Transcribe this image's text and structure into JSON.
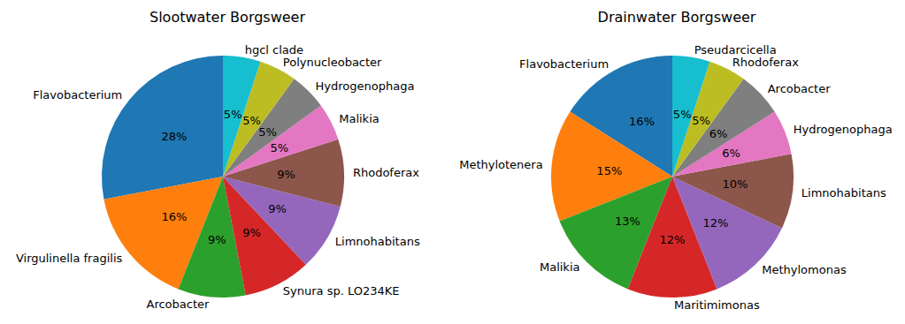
{
  "chart_data": [
    {
      "type": "pie",
      "title": "Slootwater Borgsweer",
      "categories": [
        "Flavobacterium",
        "Virgulinella fragilis",
        "Arcobacter",
        "Synura sp. LO234KE",
        "Limnohabitans",
        "Rhodoferax",
        "Malikia",
        "Hydrogenophaga",
        "Polynucleobacter",
        "hgcl clade"
      ],
      "values": [
        28,
        16,
        9,
        9,
        9,
        9,
        5,
        5,
        5,
        5
      ],
      "value_labels": [
        "28%",
        "16%",
        "9%",
        "9%",
        "9%",
        "9%",
        "5%",
        "5%",
        "5%",
        "5%"
      ],
      "colors": [
        "#1f77b4",
        "#ff7f0e",
        "#2ca02c",
        "#d62728",
        "#9467bd",
        "#8c564b",
        "#e377c2",
        "#7f7f7f",
        "#bcbd22",
        "#17becf"
      ],
      "data_labels": true
    },
    {
      "type": "pie",
      "title": "Drainwater Borgsweer",
      "categories": [
        "Flavobacterium",
        "Methylotenera",
        "Malikia",
        "Maritimimonas",
        "Methylomonas",
        "Limnohabitans",
        "Hydrogenophaga",
        "Arcobacter",
        "Rhodoferax",
        "Pseudarcicella"
      ],
      "values": [
        16,
        15,
        13,
        12,
        12,
        10,
        6,
        6,
        5,
        5
      ],
      "value_labels": [
        "16%",
        "15%",
        "13%",
        "12%",
        "12%",
        "10%",
        "6%",
        "6%",
        "5%",
        "5%"
      ],
      "colors": [
        "#1f77b4",
        "#ff7f0e",
        "#2ca02c",
        "#d62728",
        "#9467bd",
        "#8c564b",
        "#e377c2",
        "#7f7f7f",
        "#bcbd22",
        "#17becf"
      ],
      "data_labels": true
    }
  ]
}
